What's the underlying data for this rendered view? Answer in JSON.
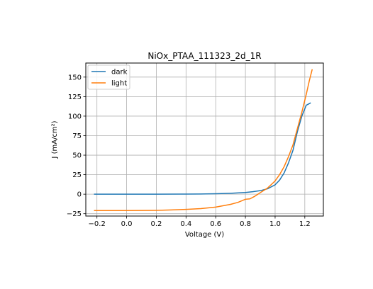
{
  "chart_data": {
    "type": "line",
    "title": "NiOx_PTAA_111323_2d_1R",
    "xlabel": "Voltage (V)",
    "ylabel": "J (mA/cm²)",
    "xlim": [
      -0.275,
      1.325
    ],
    "ylim": [
      -28,
      168
    ],
    "x_ticks": [
      -0.2,
      0.0,
      0.2,
      0.4,
      0.6,
      0.8,
      1.0,
      1.2
    ],
    "x_tick_labels": [
      "−0.2",
      "0.0",
      "0.2",
      "0.4",
      "0.6",
      "0.8",
      "1.0",
      "1.2"
    ],
    "y_ticks": [
      -25,
      0,
      25,
      50,
      75,
      100,
      125,
      150
    ],
    "y_tick_labels": [
      "−25",
      "0",
      "25",
      "50",
      "75",
      "100",
      "125",
      "150"
    ],
    "grid": true,
    "legend_position": "top-left",
    "series": [
      {
        "name": "dark",
        "color": "#1f77b4",
        "points": [
          [
            -0.22,
            0.0
          ],
          [
            0.0,
            0.0
          ],
          [
            0.2,
            0.0
          ],
          [
            0.4,
            0.1
          ],
          [
            0.5,
            0.2
          ],
          [
            0.6,
            0.6
          ],
          [
            0.7,
            1.2
          ],
          [
            0.8,
            2.2
          ],
          [
            0.85,
            3.2
          ],
          [
            0.9,
            4.5
          ],
          [
            0.95,
            7.0
          ],
          [
            1.0,
            12.0
          ],
          [
            1.03,
            18.0
          ],
          [
            1.06,
            27.0
          ],
          [
            1.09,
            40.0
          ],
          [
            1.12,
            56.0
          ],
          [
            1.15,
            80.0
          ],
          [
            1.18,
            100.0
          ],
          [
            1.21,
            114.0
          ],
          [
            1.22,
            115.0
          ],
          [
            1.24,
            117.0
          ]
        ]
      },
      {
        "name": "light",
        "color": "#ff7f0e",
        "points": [
          [
            -0.22,
            -21.0
          ],
          [
            0.0,
            -21.0
          ],
          [
            0.2,
            -20.7
          ],
          [
            0.3,
            -20.2
          ],
          [
            0.4,
            -19.5
          ],
          [
            0.5,
            -18.5
          ],
          [
            0.6,
            -16.5
          ],
          [
            0.7,
            -13.0
          ],
          [
            0.75,
            -10.5
          ],
          [
            0.8,
            -6.5
          ],
          [
            0.83,
            -6.0
          ],
          [
            0.86,
            -3.0
          ],
          [
            0.9,
            2.0
          ],
          [
            0.95,
            8.0
          ],
          [
            1.0,
            17.0
          ],
          [
            1.03,
            25.0
          ],
          [
            1.06,
            35.0
          ],
          [
            1.09,
            48.0
          ],
          [
            1.12,
            63.0
          ],
          [
            1.15,
            84.0
          ],
          [
            1.18,
            105.0
          ],
          [
            1.21,
            128.0
          ],
          [
            1.23,
            145.0
          ],
          [
            1.25,
            160.0
          ]
        ]
      }
    ]
  }
}
